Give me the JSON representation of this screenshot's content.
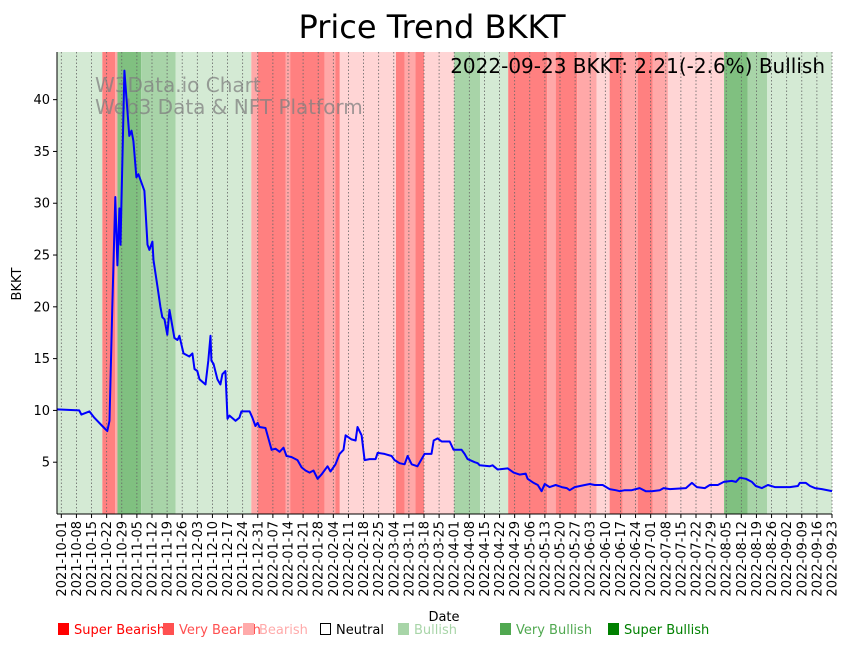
{
  "chart_data": {
    "type": "line",
    "title": "Price Trend BKKT",
    "xlabel": "Date",
    "ylabel": "BKKT",
    "annotation": "2022-09-23 BKKT: 2.21(-2.6%) Bullish",
    "watermark": [
      "W3Data.io Chart",
      "Web3 Data & NFT Platform"
    ],
    "x_units": "days since 2021-10-01",
    "xlim": [
      -2,
      357
    ],
    "ylim": [
      0,
      44.6
    ],
    "yticks": [
      5,
      10,
      15,
      20,
      25,
      30,
      35,
      40
    ],
    "xtick_interval_days": 7,
    "xtick_labels": [
      "2021-10-01",
      "2021-10-08",
      "2021-10-15",
      "2021-10-22",
      "2021-10-29",
      "2021-11-05",
      "2021-11-12",
      "2021-11-19",
      "2021-11-26",
      "2021-12-03",
      "2021-12-10",
      "2021-12-17",
      "2021-12-24",
      "2021-12-31",
      "2022-01-07",
      "2022-01-14",
      "2022-01-21",
      "2022-01-28",
      "2022-02-04",
      "2022-02-11",
      "2022-02-18",
      "2022-02-25",
      "2022-03-04",
      "2022-03-11",
      "2022-03-18",
      "2022-03-25",
      "2022-04-01",
      "2022-04-08",
      "2022-04-15",
      "2022-04-22",
      "2022-04-29",
      "2022-05-06",
      "2022-05-13",
      "2022-05-20",
      "2022-05-27",
      "2022-06-03",
      "2022-06-10",
      "2022-06-17",
      "2022-06-24",
      "2022-07-01",
      "2022-07-08",
      "2022-07-15",
      "2022-07-22",
      "2022-07-29",
      "2022-08-05",
      "2022-08-12",
      "2022-08-19",
      "2022-08-26",
      "2022-09-02",
      "2022-09-09",
      "2022-09-16",
      "2022-09-23"
    ],
    "grid": "vertical dotted",
    "line_color": "#0000ff",
    "series": [
      {
        "name": "BKKT",
        "points": [
          [
            -2,
            10.1
          ],
          [
            8.3,
            10.0
          ],
          [
            9.3,
            9.6
          ],
          [
            13,
            9.9
          ],
          [
            15.3,
            9.3
          ],
          [
            19,
            8.5
          ],
          [
            21.3,
            8.0
          ],
          [
            22.3,
            9
          ],
          [
            23.6,
            20
          ],
          [
            25,
            30.6
          ],
          [
            26,
            24
          ],
          [
            26.9,
            29.5
          ],
          [
            27.4,
            26
          ],
          [
            29.2,
            42.8
          ],
          [
            31.5,
            36.5
          ],
          [
            32.5,
            37
          ],
          [
            33.4,
            36
          ],
          [
            34.8,
            32.5
          ],
          [
            35.7,
            32.8
          ],
          [
            38.5,
            31.2
          ],
          [
            39.9,
            26
          ],
          [
            40.8,
            25.5
          ],
          [
            42.2,
            26.3
          ],
          [
            42.7,
            24.5
          ],
          [
            44.5,
            22
          ],
          [
            45.9,
            20
          ],
          [
            46.8,
            19
          ],
          [
            47.8,
            18.8
          ],
          [
            49.1,
            17.3
          ],
          [
            50.1,
            19.7
          ],
          [
            52.4,
            17
          ],
          [
            53.8,
            16.8
          ],
          [
            54.7,
            17.2
          ],
          [
            56.6,
            15.5
          ],
          [
            59.3,
            15.2
          ],
          [
            60.7,
            15.5
          ],
          [
            61.7,
            14
          ],
          [
            63,
            13.8
          ],
          [
            64,
            13
          ],
          [
            66.8,
            12.5
          ],
          [
            68.1,
            14.8
          ],
          [
            69.1,
            17.2
          ],
          [
            69.5,
            14.8
          ],
          [
            70.5,
            14.5
          ],
          [
            72.3,
            13
          ],
          [
            73.7,
            12.5
          ],
          [
            74.6,
            13.5
          ],
          [
            76,
            13.8
          ],
          [
            77,
            9.2
          ],
          [
            77.9,
            9.5
          ],
          [
            80.7,
            9
          ],
          [
            82.5,
            9.3
          ],
          [
            83.4,
            9.9
          ],
          [
            87.2,
            9.9
          ],
          [
            88.5,
            9.3
          ],
          [
            89.9,
            8.5
          ],
          [
            90.9,
            8.8
          ],
          [
            91.8,
            8.4
          ],
          [
            94.6,
            8.3
          ],
          [
            97.4,
            6.2
          ],
          [
            99.2,
            6.3
          ],
          [
            101.1,
            6
          ],
          [
            102.9,
            6.4
          ],
          [
            104.3,
            5.6
          ],
          [
            106.6,
            5.5
          ],
          [
            109.4,
            5.2
          ],
          [
            111.3,
            4.5
          ],
          [
            113.1,
            4.2
          ],
          [
            115,
            4
          ],
          [
            116.8,
            4.2
          ],
          [
            118.7,
            3.4
          ],
          [
            120.5,
            3.8
          ],
          [
            123.3,
            4.6
          ],
          [
            124.7,
            4.1
          ],
          [
            127,
            4.8
          ],
          [
            128.9,
            5.8
          ],
          [
            130.7,
            6.2
          ],
          [
            131.7,
            7.6
          ],
          [
            134.4,
            7.2
          ],
          [
            136.3,
            7.1
          ],
          [
            137.2,
            8.4
          ],
          [
            139.1,
            7.6
          ],
          [
            140.5,
            5.2
          ],
          [
            142.8,
            5.3
          ],
          [
            145.6,
            5.3
          ],
          [
            146.5,
            5.9
          ],
          [
            149.7,
            5.8
          ],
          [
            153,
            5.6
          ],
          [
            154.4,
            5.2
          ],
          [
            156.7,
            4.9
          ],
          [
            159,
            4.8
          ],
          [
            160.4,
            5.6
          ],
          [
            162.3,
            4.8
          ],
          [
            165,
            4.6
          ],
          [
            168.3,
            5.8
          ],
          [
            171.5,
            5.8
          ],
          [
            172.5,
            7.1
          ],
          [
            174.3,
            7.3
          ],
          [
            176.2,
            7.0
          ],
          [
            179.9,
            7.0
          ],
          [
            181.7,
            6.2
          ],
          [
            185.4,
            6.2
          ],
          [
            186.8,
            5.8
          ],
          [
            188.2,
            5.3
          ],
          [
            191.5,
            5.0
          ],
          [
            192.9,
            4.9
          ],
          [
            193.8,
            4.7
          ],
          [
            198.4,
            4.6
          ],
          [
            199.8,
            4.7
          ],
          [
            202.1,
            4.3
          ],
          [
            206.8,
            4.4
          ],
          [
            209.5,
            4.0
          ],
          [
            212.3,
            3.8
          ],
          [
            215.1,
            3.9
          ],
          [
            216,
            3.4
          ],
          [
            218.8,
            3.0
          ],
          [
            220.7,
            2.8
          ],
          [
            222.5,
            2.2
          ],
          [
            223.9,
            2.9
          ],
          [
            226.2,
            2.6
          ],
          [
            229,
            2.8
          ],
          [
            231.8,
            2.6
          ],
          [
            234.1,
            2.5
          ],
          [
            235.5,
            2.3
          ],
          [
            237.8,
            2.6
          ],
          [
            242.5,
            2.8
          ],
          [
            244.8,
            2.9
          ],
          [
            247.1,
            2.8
          ],
          [
            250.8,
            2.8
          ],
          [
            254,
            2.4
          ],
          [
            256.8,
            2.3
          ],
          [
            258.7,
            2.2
          ],
          [
            261,
            2.3
          ],
          [
            264.2,
            2.3
          ],
          [
            266.1,
            2.4
          ],
          [
            267.9,
            2.5
          ],
          [
            270.7,
            2.2
          ],
          [
            273.5,
            2.2
          ],
          [
            277.2,
            2.3
          ],
          [
            279,
            2.5
          ],
          [
            281.9,
            2.4
          ],
          [
            289.3,
            2.5
          ],
          [
            292.1,
            3.0
          ],
          [
            294.4,
            2.6
          ],
          [
            298.1,
            2.5
          ],
          [
            300.4,
            2.8
          ],
          [
            304.1,
            2.8
          ],
          [
            306.9,
            3.1
          ],
          [
            310.6,
            3.2
          ],
          [
            312.5,
            3.1
          ],
          [
            314.3,
            3.5
          ],
          [
            317.1,
            3.4
          ],
          [
            319.9,
            3.1
          ],
          [
            321.7,
            2.7
          ],
          [
            324.5,
            2.5
          ],
          [
            327.3,
            2.8
          ],
          [
            330.5,
            2.6
          ],
          [
            337.5,
            2.6
          ],
          [
            341.2,
            2.7
          ],
          [
            342.1,
            3.0
          ],
          [
            344.9,
            3.0
          ],
          [
            346.8,
            2.7
          ],
          [
            349.1,
            2.5
          ],
          [
            352.3,
            2.4
          ],
          [
            357,
            2.21
          ]
        ]
      }
    ],
    "sentiment_bands": [
      [
        "bullish",
        -2,
        19
      ],
      [
        "super_bearish",
        19,
        25
      ],
      [
        "very_bearish",
        25,
        26
      ],
      [
        "super_bullish",
        26,
        37
      ],
      [
        "very_bullish",
        37,
        53
      ],
      [
        "bullish",
        53,
        88
      ],
      [
        "very_bearish",
        88,
        91
      ],
      [
        "super_bearish",
        91,
        104
      ],
      [
        "very_bearish",
        104,
        106
      ],
      [
        "super_bearish",
        106,
        122
      ],
      [
        "very_bearish",
        122,
        127
      ],
      [
        "super_bearish",
        127,
        129
      ],
      [
        "bearish",
        129,
        155
      ],
      [
        "super_bearish",
        155,
        159
      ],
      [
        "very_bearish",
        159,
        164
      ],
      [
        "super_bearish",
        164,
        168
      ],
      [
        "bearish",
        168,
        182
      ],
      [
        "very_bullish",
        182,
        194
      ],
      [
        "bullish",
        194,
        207
      ],
      [
        "super_bearish",
        207,
        225
      ],
      [
        "very_bearish",
        225,
        229
      ],
      [
        "super_bearish",
        229,
        239
      ],
      [
        "very_bearish",
        239,
        248
      ],
      [
        "bearish",
        248,
        254
      ],
      [
        "super_bearish",
        254,
        260
      ],
      [
        "very_bearish",
        260,
        267
      ],
      [
        "super_bearish",
        267,
        274
      ],
      [
        "very_bearish",
        274,
        281
      ],
      [
        "bearish",
        281,
        307
      ],
      [
        "super_bullish",
        307,
        318
      ],
      [
        "very_bullish",
        318,
        327
      ],
      [
        "bullish",
        327,
        357
      ]
    ],
    "band_colors": {
      "super_bearish": "#ff8080",
      "very_bearish": "#ffa8a8",
      "bearish": "#ffd5d5",
      "bullish": "#d4ead4",
      "very_bullish": "#a8d4a8",
      "super_bullish": "#80c080"
    },
    "legend_position": "bottom",
    "legend": [
      {
        "label": "Super Bearish",
        "color": "#ff0000",
        "text_color": "#ff0000"
      },
      {
        "label": "Very Bearish",
        "color": "#ff5050",
        "text_color": "#ff5050"
      },
      {
        "label": "Bearish",
        "color": "#ffaaaa",
        "text_color": "#ffaaaa"
      },
      {
        "label": "Neutral",
        "color": "none",
        "text_color": "#000000"
      },
      {
        "label": "Bullish",
        "color": "#a8d5a8",
        "text_color": "#a8d5a8"
      },
      {
        "label": "Very Bullish",
        "color": "#50a850",
        "text_color": "#50a850"
      },
      {
        "label": "Super Bullish",
        "color": "#008000",
        "text_color": "#008000"
      }
    ]
  }
}
